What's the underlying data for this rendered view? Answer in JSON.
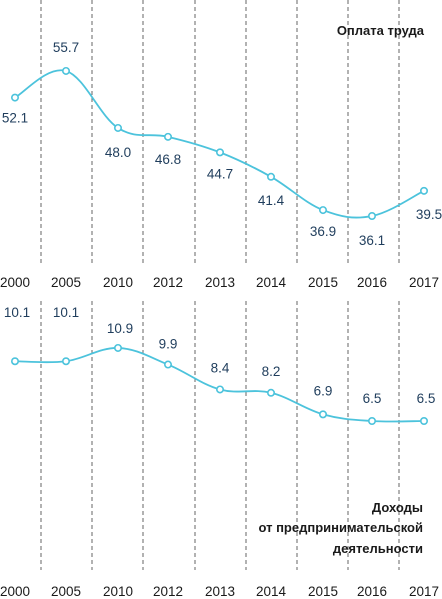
{
  "chart_data": [
    {
      "type": "line",
      "title": "Оплата труда",
      "categories": [
        "2000",
        "2005",
        "2010",
        "2012",
        "2013",
        "2014",
        "2015",
        "2016",
        "2017"
      ],
      "values": [
        52.1,
        55.7,
        48.0,
        46.8,
        44.7,
        41.4,
        36.9,
        36.1,
        39.5
      ],
      "labels": [
        "52.1",
        "55.7",
        "48.0",
        "46.8",
        "44.7",
        "41.4",
        "36.9",
        "36.1",
        "39.5"
      ],
      "line_color": "#4cc3dc",
      "label_color": "#1f3d5c",
      "grid": "vertical dashed"
    },
    {
      "type": "line",
      "title_lines": [
        "Доходы",
        "от предпринимательской",
        "деятельности"
      ],
      "categories": [
        "2000",
        "2005",
        "2010",
        "2012",
        "2013",
        "2014",
        "2015",
        "2016",
        "2017"
      ],
      "values": [
        10.1,
        10.1,
        10.9,
        9.9,
        8.4,
        8.2,
        6.9,
        6.5,
        6.5
      ],
      "labels": [
        "10.1",
        "10.1",
        "10.9",
        "9.9",
        "8.4",
        "8.2",
        "6.9",
        "6.5",
        "6.5"
      ],
      "line_color": "#4cc3dc",
      "label_color": "#1f3d5c",
      "grid": "vertical dashed"
    }
  ]
}
